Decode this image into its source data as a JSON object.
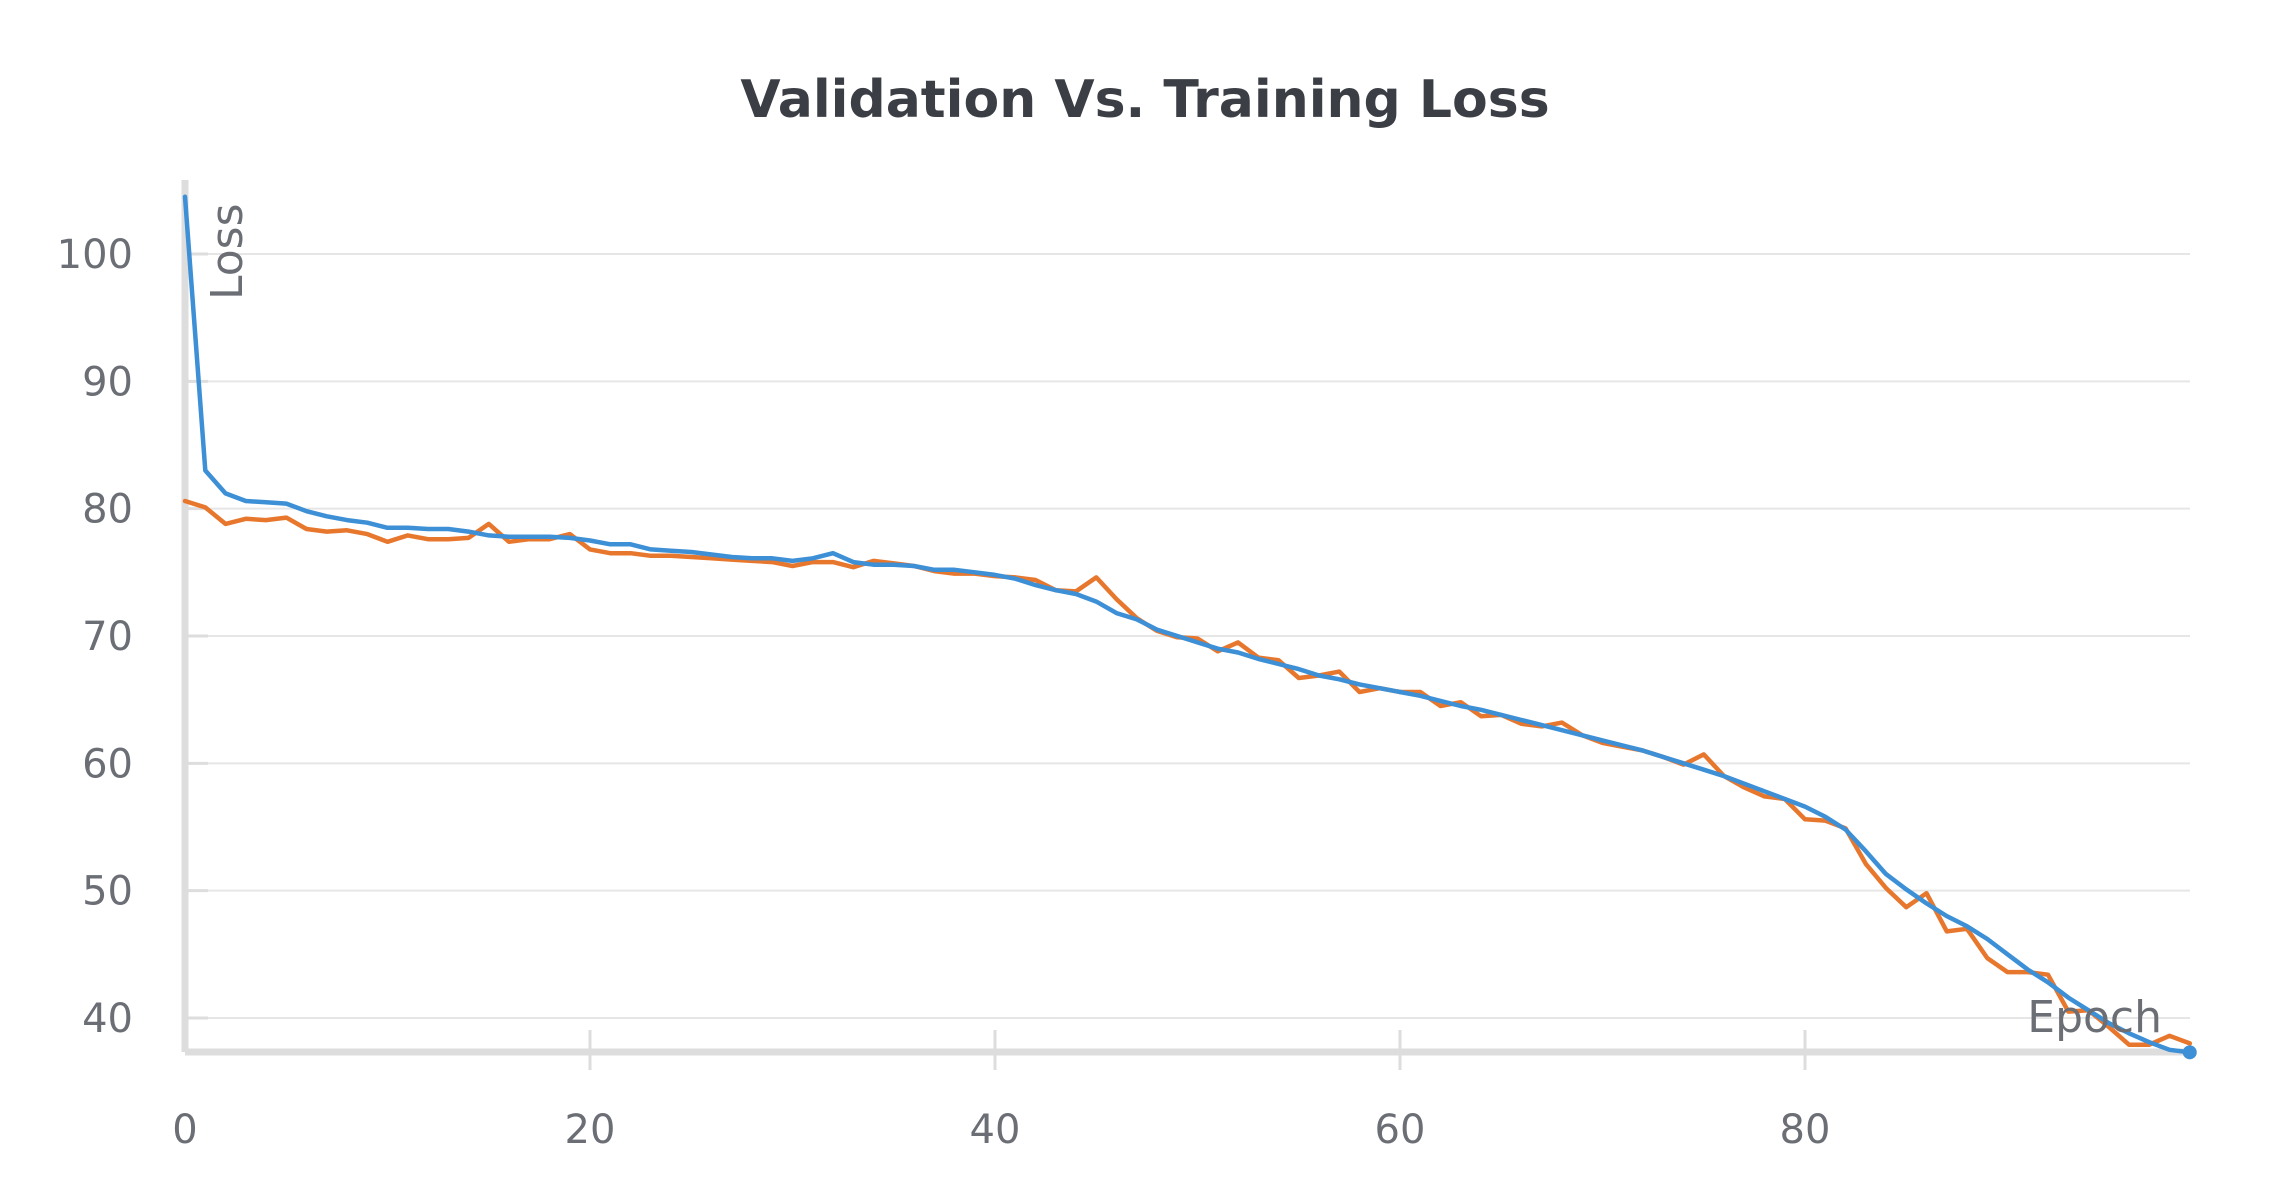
{
  "chart_data": {
    "type": "line",
    "title": "Validation Vs. Training Loss",
    "xlabel": "Epoch",
    "ylabel": "Loss",
    "xlim": [
      0,
      99
    ],
    "ylim": [
      37,
      106
    ],
    "x_ticks": [
      0,
      20,
      40,
      60,
      80
    ],
    "y_ticks": [
      40,
      50,
      60,
      70,
      80,
      90,
      100
    ],
    "grid": true,
    "legend": "none",
    "series": [
      {
        "color": "#e8772e",
        "values": [
          80.6,
          80.1,
          78.8,
          79.2,
          79.1,
          79.3,
          78.4,
          78.2,
          78.3,
          78.0,
          77.4,
          77.9,
          77.6,
          77.6,
          77.7,
          78.8,
          77.4,
          77.6,
          77.6,
          78.0,
          76.8,
          76.5,
          76.5,
          76.3,
          76.3,
          76.2,
          76.1,
          76.0,
          75.9,
          75.8,
          75.5,
          75.8,
          75.8,
          75.4,
          75.9,
          75.7,
          75.5,
          75.1,
          74.9,
          74.9,
          74.7,
          74.6,
          74.4,
          73.6,
          73.5,
          74.6,
          72.9,
          71.4,
          70.4,
          69.9,
          69.8,
          68.8,
          69.5,
          68.3,
          68.1,
          66.7,
          66.9,
          67.2,
          65.6,
          65.9,
          65.6,
          65.6,
          64.5,
          64.8,
          63.7,
          63.8,
          63.1,
          62.9,
          63.2,
          62.2,
          61.6,
          61.3,
          61.0,
          60.5,
          59.9,
          60.7,
          59.0,
          58.1,
          57.4,
          57.2,
          55.6,
          55.5,
          54.9,
          52.1,
          50.2,
          48.7,
          49.8,
          46.8,
          47.0,
          44.7,
          43.6,
          43.6,
          43.4,
          40.5,
          40.6,
          39.3,
          37.9,
          37.9,
          38.6,
          38.0
        ]
      },
      {
        "color": "#3d8fd6",
        "values": [
          104.5,
          83.0,
          81.2,
          80.6,
          80.5,
          80.4,
          79.8,
          79.4,
          79.1,
          78.9,
          78.5,
          78.5,
          78.4,
          78.4,
          78.2,
          77.9,
          77.8,
          77.8,
          77.8,
          77.7,
          77.5,
          77.2,
          77.2,
          76.8,
          76.7,
          76.6,
          76.4,
          76.2,
          76.1,
          76.1,
          75.9,
          76.1,
          76.5,
          75.8,
          75.6,
          75.6,
          75.5,
          75.2,
          75.2,
          75.0,
          74.8,
          74.5,
          74.0,
          73.6,
          73.3,
          72.7,
          71.8,
          71.3,
          70.5,
          70.0,
          69.5,
          69.0,
          68.7,
          68.2,
          67.8,
          67.4,
          66.9,
          66.6,
          66.2,
          65.9,
          65.6,
          65.3,
          64.9,
          64.5,
          64.2,
          63.8,
          63.4,
          63.0,
          62.6,
          62.2,
          61.8,
          61.4,
          61.0,
          60.5,
          60.0,
          59.5,
          59.0,
          58.4,
          57.8,
          57.2,
          56.6,
          55.8,
          54.8,
          53.1,
          51.3,
          50.1,
          49.0,
          48.0,
          47.2,
          46.2,
          45.0,
          43.8,
          42.8,
          41.6,
          40.6,
          39.6,
          38.8,
          38.1,
          37.5,
          37.3
        ]
      }
    ]
  }
}
